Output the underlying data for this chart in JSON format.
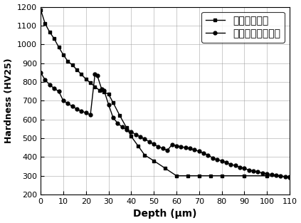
{
  "series1_label": "低温气体渗碳",
  "series2_label": "低温气体催渗渗碳",
  "series1_x": [
    0,
    2,
    4,
    6,
    8,
    10,
    12,
    14,
    16,
    18,
    20,
    22,
    24,
    26,
    28,
    30,
    32,
    35,
    38,
    40,
    43,
    46,
    50,
    55,
    60,
    65,
    70,
    75,
    80,
    90,
    100,
    110
  ],
  "series1_y": [
    1185,
    1110,
    1065,
    1030,
    985,
    945,
    910,
    890,
    865,
    840,
    815,
    795,
    775,
    755,
    745,
    735,
    690,
    620,
    555,
    510,
    460,
    410,
    380,
    340,
    300,
    300,
    300,
    300,
    300,
    300,
    300,
    295
  ],
  "series2_x": [
    0,
    2,
    4,
    6,
    8,
    10,
    12,
    14,
    16,
    18,
    20,
    22,
    24,
    25,
    27,
    28,
    30,
    32,
    34,
    36,
    38,
    40,
    42,
    44,
    46,
    48,
    50,
    52,
    54,
    56,
    58,
    60,
    62,
    64,
    66,
    68,
    70,
    72,
    74,
    76,
    78,
    80,
    82,
    84,
    86,
    88,
    90,
    92,
    94,
    96,
    98,
    100,
    102,
    104,
    106,
    108,
    110
  ],
  "series2_y": [
    850,
    810,
    785,
    765,
    750,
    700,
    685,
    670,
    655,
    645,
    635,
    625,
    840,
    835,
    760,
    755,
    680,
    610,
    580,
    560,
    545,
    535,
    520,
    508,
    495,
    482,
    468,
    455,
    445,
    435,
    465,
    460,
    455,
    450,
    445,
    438,
    430,
    420,
    410,
    395,
    385,
    380,
    370,
    360,
    355,
    345,
    340,
    330,
    325,
    320,
    315,
    310,
    307,
    303,
    300,
    295,
    290
  ],
  "xlabel": "Depth (μm)",
  "ylabel": "Hardness (HV25)",
  "xlim": [
    0,
    110
  ],
  "ylim": [
    200,
    1200
  ],
  "xticks": [
    0,
    10,
    20,
    30,
    40,
    50,
    60,
    70,
    80,
    90,
    100,
    110
  ],
  "yticks": [
    200,
    300,
    400,
    500,
    600,
    700,
    800,
    900,
    1000,
    1100,
    1200
  ],
  "line_color": "black",
  "marker1": "s",
  "marker2": "o",
  "markersize": 3.5,
  "linewidth": 1.0,
  "background_color": "#ffffff",
  "grid_color": "#999999"
}
